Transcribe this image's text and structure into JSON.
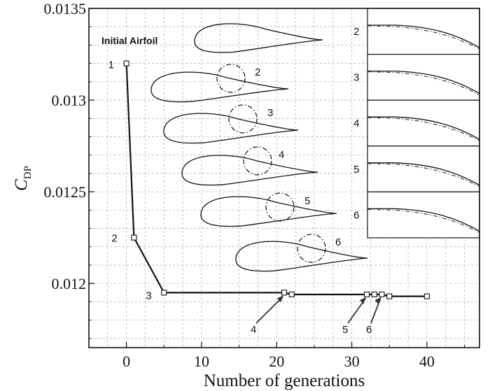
{
  "chart_data": {
    "type": "line",
    "xlabel": "Number of generations",
    "ylabel_main": "C",
    "ylabel_sub": "DP",
    "xlim": [
      -5,
      47
    ],
    "ylim": [
      0.01165,
      0.0135
    ],
    "xticks": [
      0,
      10,
      20,
      30,
      40
    ],
    "xtick_labels": [
      "0",
      "10",
      "20",
      "30",
      "40"
    ],
    "yticks": [
      0.012,
      0.0125,
      0.013,
      0.0135
    ],
    "ytick_labels": [
      "0.012",
      "0.0125",
      "0.013",
      "0.0135"
    ],
    "grid": "dashed",
    "series": [
      {
        "x": [
          0,
          1,
          5,
          21,
          22,
          32,
          33,
          34,
          35,
          40
        ],
        "y": [
          0.0132,
          0.01225,
          0.01195,
          0.01195,
          0.01194,
          0.01194,
          0.01194,
          0.01194,
          0.01193,
          0.01193
        ]
      }
    ],
    "point_labels": [
      {
        "text": "1",
        "x": 0,
        "y": 0.0132
      },
      {
        "text": "2",
        "x": 1,
        "y": 0.01225
      },
      {
        "text": "3",
        "x": 5,
        "y": 0.01195
      },
      {
        "text": "4",
        "x": 21,
        "y": 0.01195
      },
      {
        "text": "5",
        "x": 32,
        "y": 0.01194
      },
      {
        "text": "6",
        "x": 34,
        "y": 0.01194
      }
    ],
    "annotations": {
      "initial_airfoil": "Initial Airfoil",
      "airfoil_labels": [
        "2",
        "3",
        "4",
        "5",
        "6"
      ],
      "inset_labels": [
        "2",
        "3",
        "4",
        "5",
        "6"
      ]
    }
  }
}
